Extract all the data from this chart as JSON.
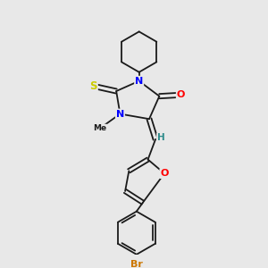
{
  "background_color": "#e8e8e8",
  "bond_color": "#1a1a1a",
  "atom_colors": {
    "N": "#0000ff",
    "O": "#ff0000",
    "S": "#cccc00",
    "Br": "#cc7700",
    "H": "#2e8b8b",
    "C": "#1a1a1a"
  },
  "figsize": [
    3.0,
    3.0
  ],
  "dpi": 100
}
